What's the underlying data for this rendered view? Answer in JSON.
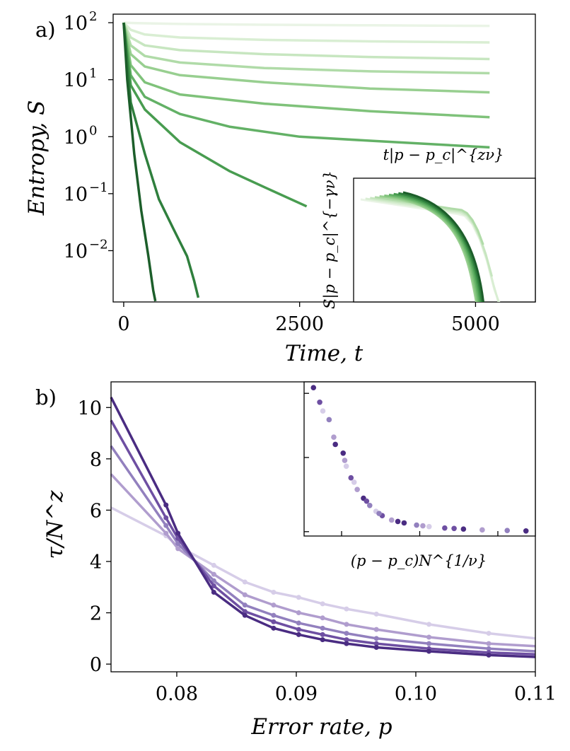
{
  "chart_data": [
    {
      "panel": "a)",
      "type": "line",
      "xlabel": "Time, t",
      "ylabel": "Entropy, S",
      "xlim": [
        -150,
        5850
      ],
      "ylim_log10": [
        -2.9,
        2.15
      ],
      "yscale": "log",
      "xticks": [
        0,
        2500,
        5000
      ],
      "xtick_labels": [
        "0",
        "2500",
        "5000"
      ],
      "yticks_log10": [
        2,
        1,
        0,
        -1,
        -2
      ],
      "ytick_labels": [
        "10",
        "10",
        "10",
        "10",
        "10"
      ],
      "ytick_exponents": [
        "2",
        "1",
        "0",
        "−1",
        "−2"
      ],
      "series": [
        {
          "name": "curve 1",
          "color": "#eaf4e6",
          "x": [
            0,
            200,
            800,
            2000,
            3500,
            5200
          ],
          "y": [
            100,
            98,
            95,
            92,
            90,
            88
          ]
        },
        {
          "name": "curve 2",
          "color": "#d9eed3",
          "x": [
            0,
            100,
            300,
            800,
            2000,
            3500,
            5200
          ],
          "y": [
            100,
            75,
            62,
            55,
            50,
            47,
            45
          ]
        },
        {
          "name": "curve 3",
          "color": "#c7e6c0",
          "x": [
            0,
            100,
            300,
            800,
            2000,
            3500,
            5200
          ],
          "y": [
            100,
            55,
            40,
            33,
            28,
            25,
            23
          ]
        },
        {
          "name": "curve 4",
          "color": "#b0dba8",
          "x": [
            0,
            100,
            300,
            800,
            2000,
            3500,
            5200
          ],
          "y": [
            100,
            40,
            26,
            20,
            16,
            14,
            13
          ]
        },
        {
          "name": "curve 5",
          "color": "#98cf90",
          "x": [
            0,
            100,
            300,
            800,
            2000,
            3500,
            5200
          ],
          "y": [
            100,
            28,
            17,
            12,
            9,
            7,
            6
          ]
        },
        {
          "name": "curve 6",
          "color": "#7fc27a",
          "x": [
            0,
            100,
            300,
            800,
            2000,
            3500,
            5200
          ],
          "y": [
            100,
            18,
            9,
            5.5,
            3.8,
            2.8,
            2.2
          ]
        },
        {
          "name": "curve 7",
          "color": "#63b166",
          "x": [
            0,
            100,
            300,
            800,
            1500,
            2500,
            3500,
            5200
          ],
          "y": [
            100,
            12,
            5,
            2.5,
            1.5,
            1.0,
            0.85,
            0.65
          ]
        },
        {
          "name": "curve 8",
          "color": "#489c50",
          "x": [
            0,
            100,
            300,
            800,
            1500,
            2000,
            2600
          ],
          "y": [
            100,
            8,
            3,
            0.8,
            0.25,
            0.13,
            0.06
          ]
        },
        {
          "name": "curve 9",
          "color": "#2f7f3d",
          "x": [
            0,
            100,
            300,
            500,
            700,
            900,
            1000,
            1060
          ],
          "y": [
            100,
            4,
            0.5,
            0.08,
            0.025,
            0.008,
            0.003,
            0.0015
          ]
        },
        {
          "name": "curve 10",
          "color": "#1c5e2a",
          "x": [
            0,
            50,
            150,
            250,
            350,
            420,
            450
          ],
          "y": [
            100,
            10,
            0.5,
            0.05,
            0.008,
            0.002,
            0.0013
          ]
        }
      ],
      "inset": {
        "xlabel": "t|p − p_c|^{zν}",
        "ylabel": "S|p − p_c|^{−γν}",
        "note": "collapsed curves, no tick labels"
      }
    },
    {
      "panel": "b)",
      "type": "line",
      "xlabel": "Error rate, p",
      "ylabel": "τ/N^z",
      "xlim": [
        0.0745,
        0.11
      ],
      "ylim": [
        -0.3,
        11
      ],
      "xticks": [
        0.08,
        0.09,
        0.1,
        0.11
      ],
      "xtick_labels": [
        "0.08",
        "0.09",
        "0.10",
        "0.11"
      ],
      "yticks": [
        0,
        2,
        4,
        6,
        8,
        10
      ],
      "ytick_labels": [
        "0",
        "2",
        "4",
        "6",
        "8",
        "10"
      ],
      "x": [
        0.0745,
        0.0791,
        0.0801,
        0.0831,
        0.0857,
        0.0881,
        0.0902,
        0.0922,
        0.0942,
        0.0967,
        0.1011,
        0.1061,
        0.11
      ],
      "series": [
        {
          "name": "N1",
          "color": "#d6cde8",
          "values": [
            6.1,
            5.0,
            4.6,
            3.85,
            3.2,
            2.8,
            2.6,
            2.35,
            2.15,
            1.95,
            1.55,
            1.2,
            1.0
          ]
        },
        {
          "name": "N2",
          "color": "#b09dce",
          "values": [
            7.4,
            5.1,
            4.5,
            3.5,
            2.7,
            2.3,
            2.0,
            1.8,
            1.55,
            1.35,
            1.05,
            0.8,
            0.7
          ]
        },
        {
          "name": "N3",
          "color": "#9280be",
          "values": [
            8.5,
            5.4,
            4.7,
            3.25,
            2.3,
            1.9,
            1.6,
            1.4,
            1.2,
            1.0,
            0.8,
            0.6,
            0.5
          ]
        },
        {
          "name": "N4",
          "color": "#6e4fa2",
          "values": [
            9.5,
            5.7,
            4.9,
            3.05,
            2.05,
            1.65,
            1.35,
            1.15,
            0.95,
            0.8,
            0.6,
            0.45,
            0.38
          ]
        },
        {
          "name": "N5",
          "color": "#4a2c82",
          "values": [
            10.4,
            6.2,
            5.1,
            2.8,
            1.9,
            1.4,
            1.15,
            0.95,
            0.8,
            0.65,
            0.5,
            0.35,
            0.28
          ]
        }
      ],
      "inset": {
        "xlabel": "(p − p_c)N^{1/ν}",
        "type": "scatter",
        "xlim": [
          -1.2,
          6.2
        ],
        "ylim": [
          0,
          10.6
        ],
        "points_x": [
          -0.9,
          -0.7,
          -0.4,
          -0.25,
          0.05,
          0.15,
          0.3,
          0.5,
          0.7,
          0.9,
          1.1,
          1.3,
          1.6,
          2.0,
          2.4,
          2.8,
          3.3,
          3.9,
          4.5,
          5.3,
          5.9,
          -0.6,
          -0.2,
          0.1,
          0.4,
          0.8,
          1.2,
          1.8,
          2.6,
          3.6
        ],
        "points_y": [
          10.2,
          9.2,
          8.0,
          6.8,
          5.7,
          4.8,
          4.0,
          3.2,
          2.6,
          2.1,
          1.7,
          1.4,
          1.1,
          0.9,
          0.75,
          0.65,
          0.55,
          0.48,
          0.42,
          0.38,
          0.35,
          8.6,
          6.3,
          5.2,
          3.7,
          2.4,
          1.55,
          1.0,
          0.7,
          0.52
        ],
        "points_series": [
          4,
          3,
          2,
          1,
          4,
          0,
          3,
          1,
          4,
          2,
          0,
          3,
          1,
          4,
          2,
          0,
          3,
          4,
          1,
          2,
          4,
          0,
          4,
          1,
          0,
          3,
          2,
          4,
          1,
          3
        ]
      }
    }
  ]
}
